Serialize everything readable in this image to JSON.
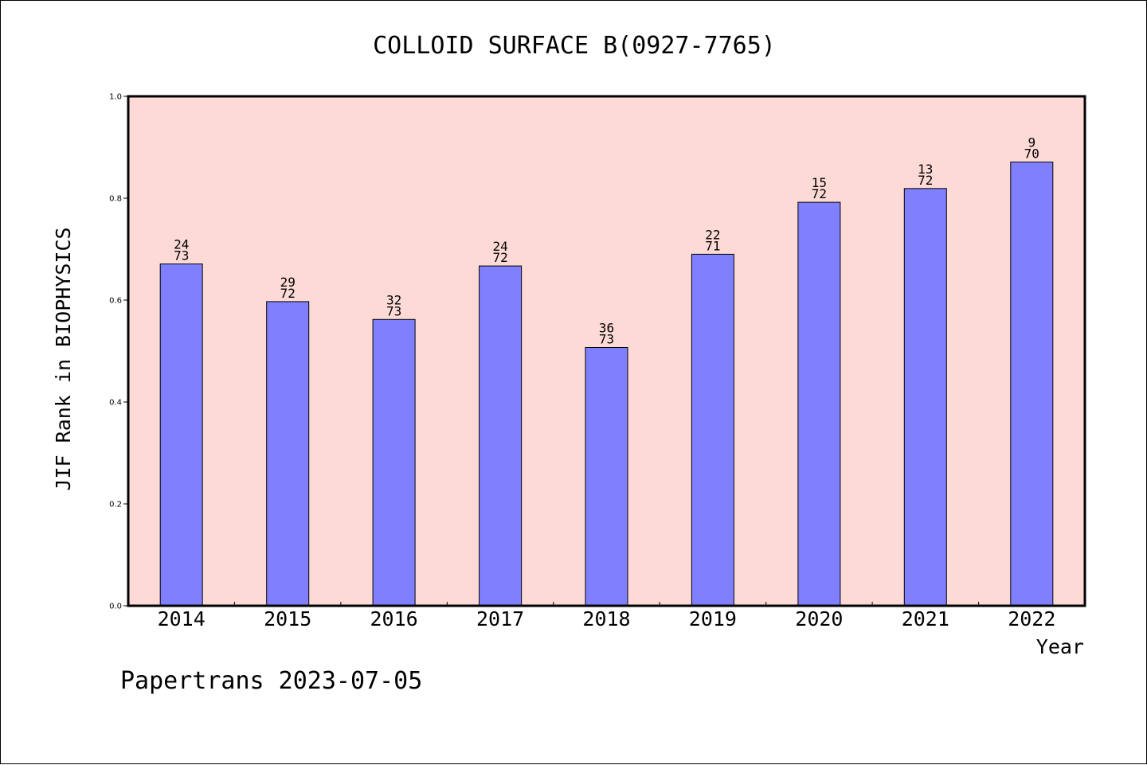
{
  "colors": {
    "plot_background": "#fddad6",
    "bar_fill": "#8080ff",
    "bar_stroke": "#000000",
    "axis": "#000000"
  },
  "footer": "Papertrans 2023-07-05",
  "chart_data": {
    "type": "bar",
    "title": "COLLOID SURFACE B(0927-7765)",
    "xlabel": "Year",
    "ylabel": "JIF Rank in BIOPHYSICS",
    "ylim": [
      0,
      1.0
    ],
    "yticks": [
      "0.0",
      "0.2",
      "0.4",
      "0.6",
      "0.8",
      "1.0"
    ],
    "grid": false,
    "legend": "none",
    "categories": [
      "2014",
      "2015",
      "2016",
      "2017",
      "2018",
      "2019",
      "2020",
      "2021",
      "2022"
    ],
    "values": [
      0.671,
      0.597,
      0.562,
      0.667,
      0.507,
      0.69,
      0.792,
      0.819,
      0.871
    ],
    "rank_numerators": [
      "24",
      "29",
      "32",
      "24",
      "36",
      "22",
      "15",
      "13",
      "9"
    ],
    "rank_denominators": [
      "73",
      "72",
      "73",
      "72",
      "73",
      "71",
      "72",
      "72",
      "70"
    ]
  }
}
